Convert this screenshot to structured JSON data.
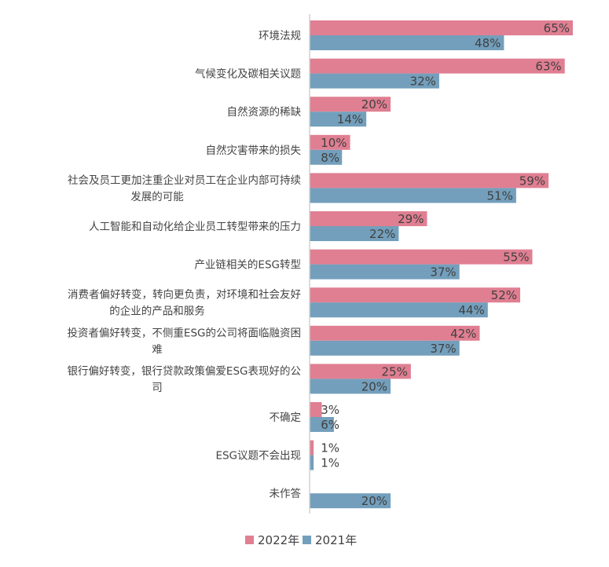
{
  "chart_data": {
    "type": "bar",
    "orientation": "horizontal",
    "categories": [
      "环境法规",
      "气候变化及碳相关议题",
      "自然资源的稀缺",
      "自然灾害带来的损失",
      "社会及员工更加注重企业对员工在企业内部可持续\n发展的可能",
      "人工智能和自动化给企业员工转型带来的压力",
      "产业链相关的ESG转型",
      "消费者偏好转变，转向更负责，对环境和社会友好\n的企业的产品和服务",
      "投资者偏好转变，不侧重ESG的公司将面临融资困\n难",
      "银行偏好转变，银行贷款政策偏爱ESG表现好的公\n司",
      "不确定",
      "ESG议题不会出现",
      "未作答"
    ],
    "series": [
      {
        "name": "2022年",
        "color": "#e07f92",
        "values": [
          65,
          63,
          20,
          10,
          59,
          29,
          55,
          52,
          42,
          25,
          3,
          1,
          null
        ]
      },
      {
        "name": "2021年",
        "color": "#739fbc",
        "values": [
          48,
          32,
          14,
          8,
          51,
          22,
          37,
          44,
          37,
          20,
          6,
          1,
          20
        ]
      }
    ],
    "value_suffix": "%",
    "xlim": [
      0,
      70
    ],
    "grid": false,
    "legend_position": "bottom"
  }
}
